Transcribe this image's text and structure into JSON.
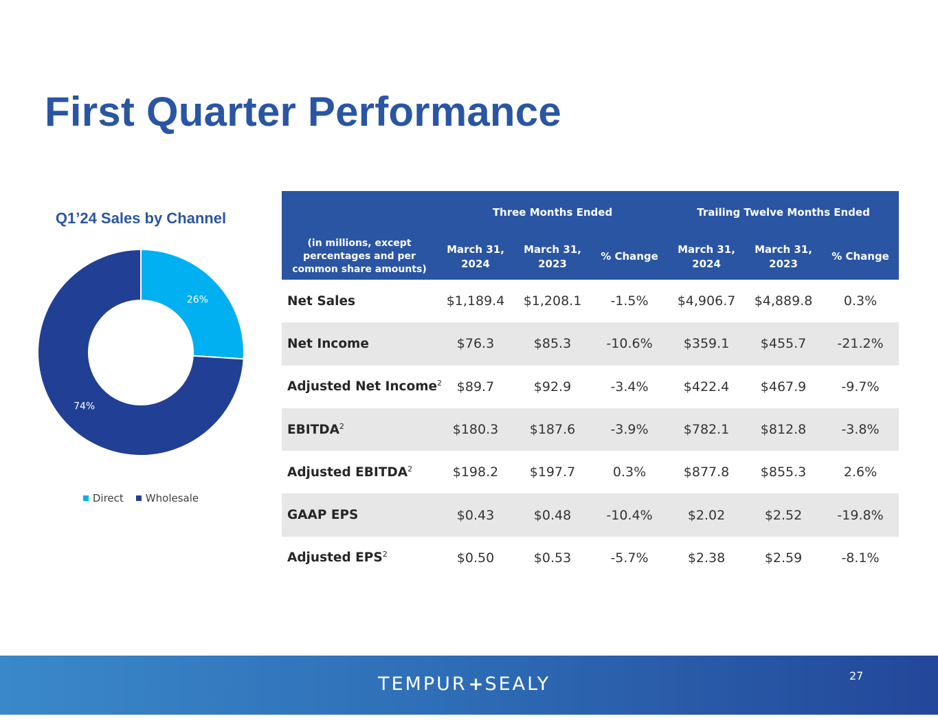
{
  "page": {
    "title": "First Quarter Performance",
    "page_number": "27",
    "logo": {
      "left": "TEMPUR",
      "right": "SEALY",
      "separator": "+"
    }
  },
  "chart_data": {
    "type": "pie",
    "title": "Q1’24 Sales by Channel",
    "categories": [
      "Direct",
      "Wholesale"
    ],
    "values": [
      26,
      74
    ],
    "labels": [
      "26%",
      "74%"
    ],
    "colors": [
      "#00b0f0",
      "#213f95"
    ],
    "legend_position": "bottom",
    "donut": true
  },
  "table": {
    "group_headers": [
      "Three Months Ended",
      "Trailing Twelve Months Ended"
    ],
    "unit_label": "(in millions, except percentages and per common share amounts)",
    "columns": [
      "March 31, 2024",
      "March 31, 2023",
      "% Change",
      "March 31, 2024",
      "March 31, 2023",
      "% Change"
    ],
    "rows": [
      {
        "label": "Net Sales",
        "sup": "",
        "values": [
          "$1,189.4",
          "$1,208.1",
          "-1.5%",
          "$4,906.7",
          "$4,889.8",
          "0.3%"
        ]
      },
      {
        "label": "Net Income",
        "sup": "",
        "values": [
          "$76.3",
          "$85.3",
          "-10.6%",
          "$359.1",
          "$455.7",
          "-21.2%"
        ]
      },
      {
        "label": "Adjusted Net Income",
        "sup": "2",
        "values": [
          "$89.7",
          "$92.9",
          "-3.4%",
          "$422.4",
          "$467.9",
          "-9.7%"
        ]
      },
      {
        "label": "EBITDA",
        "sup": "2",
        "values": [
          "$180.3",
          "$187.6",
          "-3.9%",
          "$782.1",
          "$812.8",
          "-3.8%"
        ]
      },
      {
        "label": "Adjusted EBITDA",
        "sup": "2",
        "values": [
          "$198.2",
          "$197.7",
          "0.3%",
          "$877.8",
          "$855.3",
          "2.6%"
        ]
      },
      {
        "label": "GAAP EPS",
        "sup": "",
        "values": [
          "$0.43",
          "$0.48",
          "-10.4%",
          "$2.02",
          "$2.52",
          "-19.8%"
        ]
      },
      {
        "label": "Adjusted EPS",
        "sup": "2",
        "values": [
          "$0.50",
          "$0.53",
          "-5.7%",
          "$2.38",
          "$2.59",
          "-8.1%"
        ]
      }
    ]
  }
}
